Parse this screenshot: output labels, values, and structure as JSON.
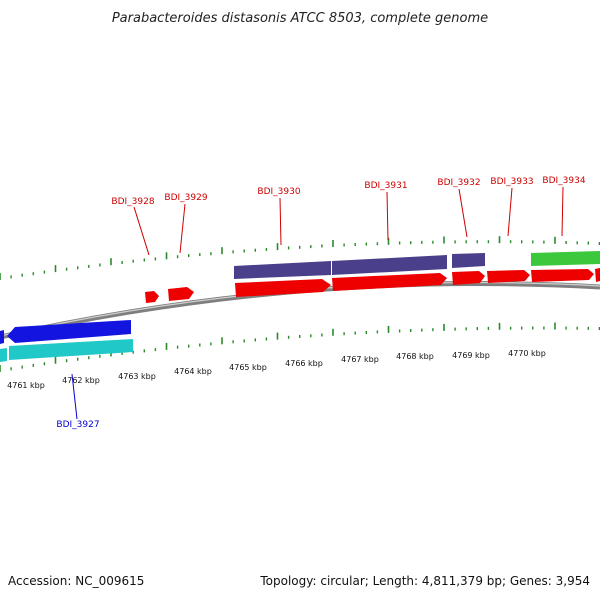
{
  "title": "Parabacteroides distasonis ATCC 8503, complete genome",
  "footer": {
    "accession": "Accession: NC_009615",
    "summary": "Topology: circular; Length: 4,811,379 bp; Genes: 3,954"
  },
  "colors": {
    "tick": "#2a8a2a",
    "backbone": "#8a8a8a",
    "label_forward": "#cc0000",
    "label_reverse": "#0000cc",
    "red_gene": "#ee0000",
    "purple_gene": "#4a3f8a",
    "blue_gene": "#1414e0",
    "cyan_gene": "#20c8c8",
    "green_gene": "#3cc83c"
  },
  "kbp_labels": [
    "4761 kbp",
    "4762 kbp",
    "4763 kbp",
    "4764 kbp",
    "4765 kbp",
    "4766 kbp",
    "4767 kbp",
    "4768 kbp",
    "4769 kbp",
    "4770 kbp"
  ],
  "genes": [
    {
      "name": "BDI_3927",
      "strand": "reverse"
    },
    {
      "name": "BDI_3928",
      "strand": "forward"
    },
    {
      "name": "BDI_3929",
      "strand": "forward"
    },
    {
      "name": "BDI_3930",
      "strand": "forward"
    },
    {
      "name": "BDI_3931",
      "strand": "forward"
    },
    {
      "name": "BDI_3932",
      "strand": "forward"
    },
    {
      "name": "BDI_3933",
      "strand": "forward"
    },
    {
      "name": "BDI_3934",
      "strand": "forward"
    }
  ]
}
